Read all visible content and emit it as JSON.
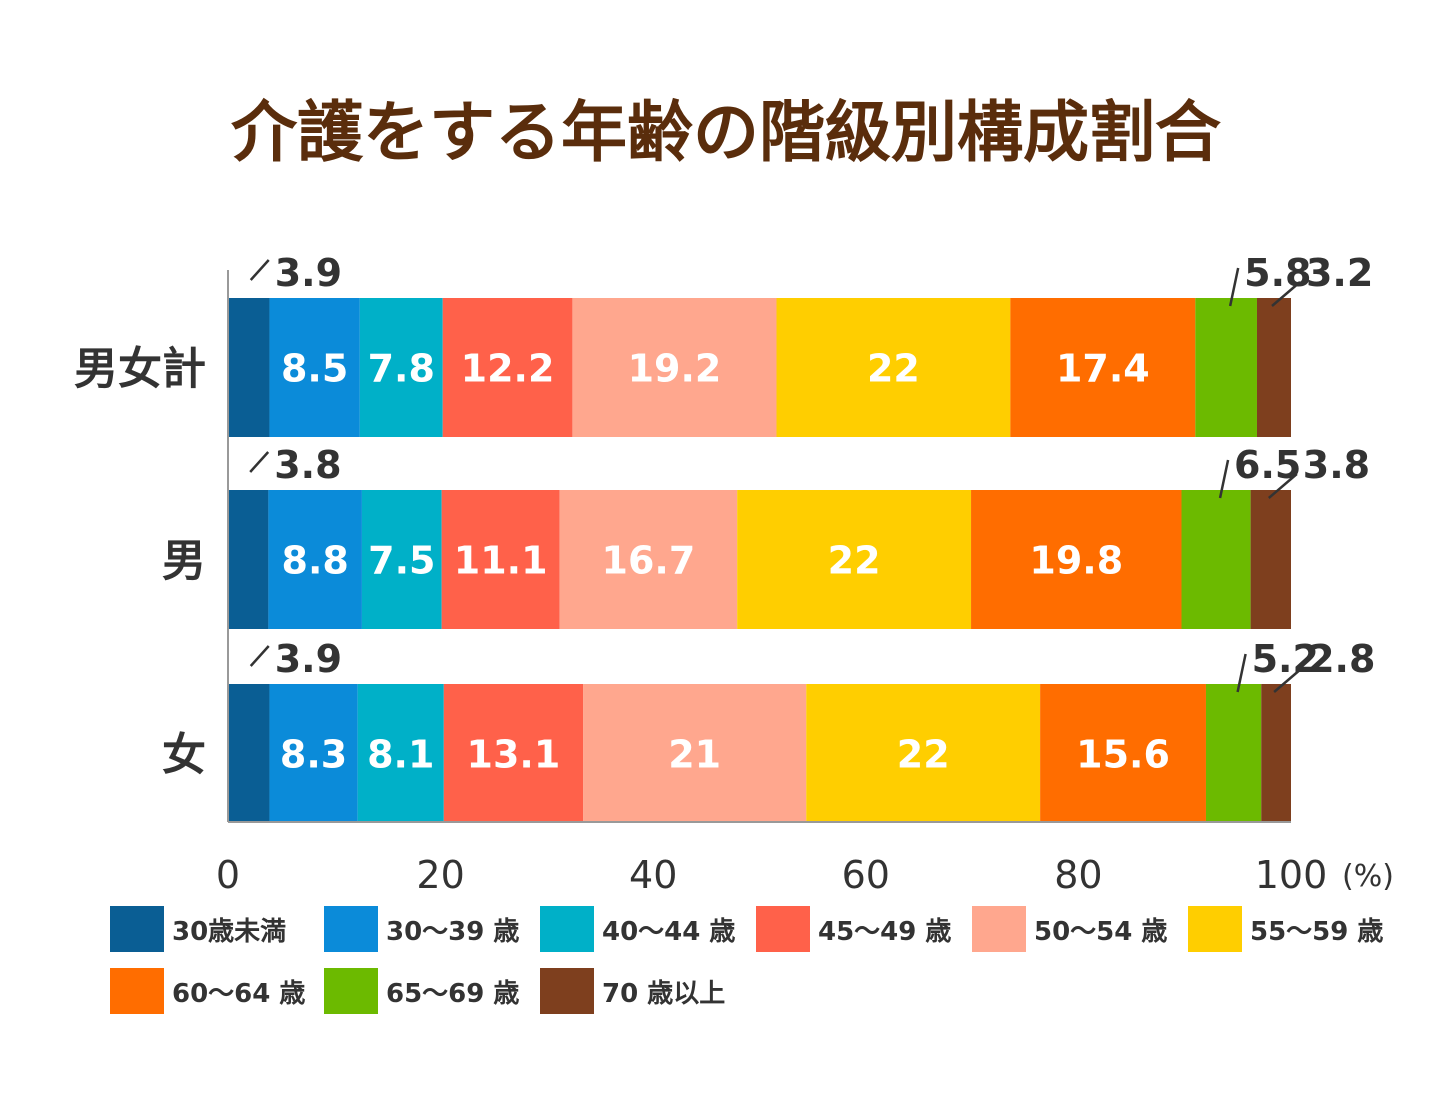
{
  "colors": {
    "title": "#5a2d0c",
    "text": "#333333",
    "axis": "#999999",
    "inside_label": "#ffffff"
  },
  "chart_data": {
    "type": "bar",
    "orientation": "horizontal",
    "stacked": true,
    "title": "介護をする年齢の階級別構成割合",
    "unit_label": "(%)",
    "xlim": [
      0,
      100
    ],
    "x_ticks": [
      0,
      20,
      40,
      60,
      80,
      100
    ],
    "categories": [
      "男女計",
      "男",
      "女"
    ],
    "series": [
      {
        "name": "30歳未満",
        "color": "#0a5e94",
        "values": [
          3.9,
          3.8,
          3.9
        ]
      },
      {
        "name": "30〜39 歳",
        "color": "#0b8bd9",
        "values": [
          8.5,
          8.8,
          8.3
        ]
      },
      {
        "name": "40〜44 歳",
        "color": "#00b0c8",
        "values": [
          7.8,
          7.5,
          8.1
        ]
      },
      {
        "name": "45〜49 歳",
        "color": "#ff614a",
        "values": [
          12.2,
          11.1,
          13.1
        ]
      },
      {
        "name": "50〜54 歳",
        "color": "#ffa78e",
        "values": [
          19.2,
          16.7,
          21
        ]
      },
      {
        "name": "55〜59 歳",
        "color": "#ffce00",
        "values": [
          22,
          22,
          22
        ]
      },
      {
        "name": "60〜64 歳",
        "color": "#ff6d00",
        "values": [
          17.4,
          19.8,
          15.6
        ]
      },
      {
        "name": "65〜69 歳",
        "color": "#6cba00",
        "values": [
          5.8,
          6.5,
          5.2
        ]
      },
      {
        "name": "70 歳以上",
        "color": "#7e3f1e",
        "values": [
          3.2,
          3.8,
          2.8
        ]
      }
    ],
    "legend_position": "bottom",
    "grid": false
  }
}
